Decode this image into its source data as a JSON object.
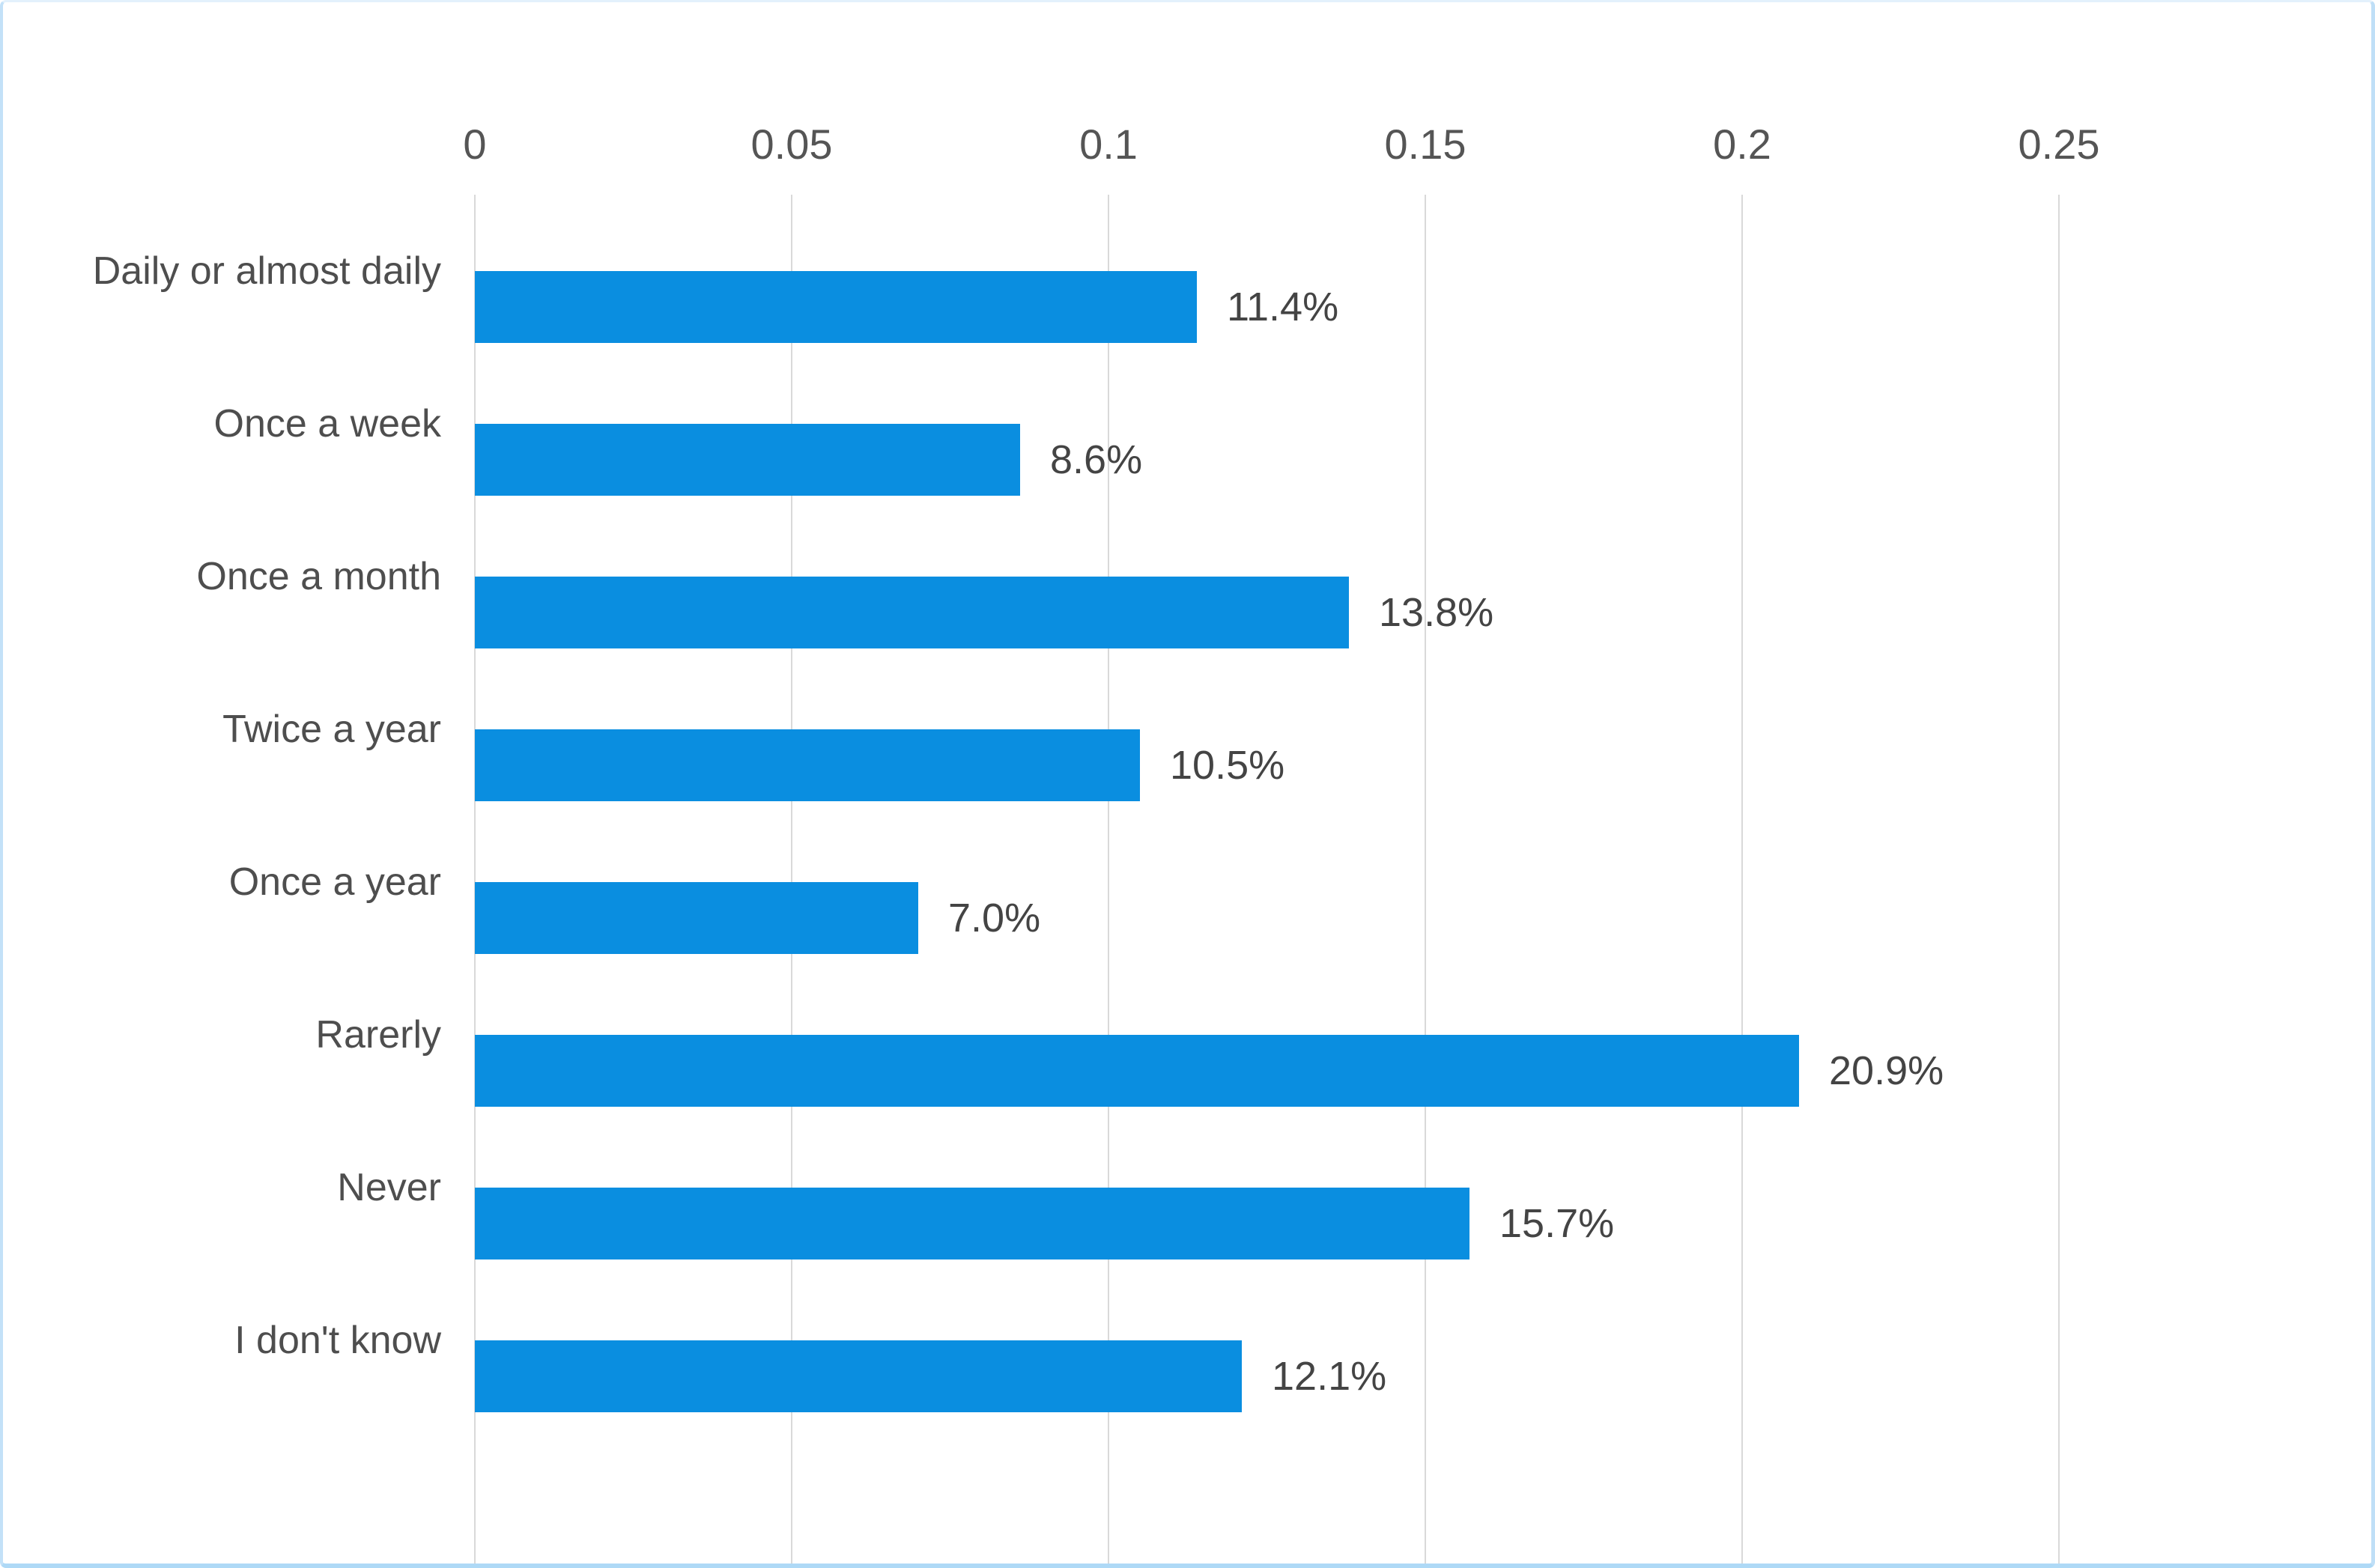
{
  "chart_data": {
    "type": "bar",
    "orientation": "horizontal",
    "title": "",
    "categories": [
      "Daily or almost daily",
      "Once a week",
      "Once a month",
      "Twice a year",
      "Once a year",
      "Rarerly",
      "Never",
      "I don't know"
    ],
    "values": [
      0.114,
      0.086,
      0.138,
      0.105,
      0.07,
      0.209,
      0.157,
      0.121
    ],
    "value_labels": [
      "11.4%",
      "8.6%",
      "13.8%",
      "10.5%",
      "7.0%",
      "20.9%",
      "15.7%",
      "12.1%"
    ],
    "x_axis": {
      "position": "top",
      "ticks": [
        0,
        0.05,
        0.1,
        0.15,
        0.2,
        0.25
      ],
      "tick_labels": [
        "0",
        "0.05",
        "0.1",
        "0.15",
        "0.2",
        "0.25"
      ],
      "range": [
        0,
        0.3
      ]
    },
    "grid": "vertical-only",
    "legend": "none",
    "colors": {
      "bar": "#0a8ee0",
      "gridline": "#d9d9d9",
      "text": "#4e4e4e",
      "frame": "#bfdff7",
      "background": "#ffffff"
    }
  }
}
